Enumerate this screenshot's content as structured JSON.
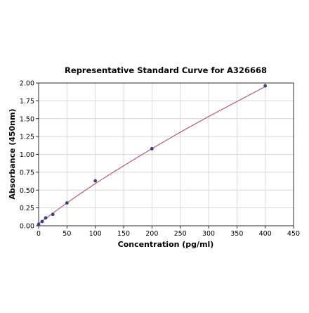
{
  "chart_data": {
    "type": "scatter",
    "title": "Representative Standard Curve for A326668",
    "xlabel": "Concentration (pg/ml)",
    "ylabel": "Absorbance (450nm)",
    "xlim": [
      0,
      450
    ],
    "ylim": [
      0,
      2.0
    ],
    "xticks": [
      0,
      50,
      100,
      150,
      200,
      250,
      300,
      350,
      400,
      450
    ],
    "yticks": [
      0.0,
      0.25,
      0.5,
      0.75,
      1.0,
      1.25,
      1.5,
      1.75,
      2.0
    ],
    "ytick_labels": [
      "0.00",
      "0.25",
      "0.50",
      "0.75",
      "1.00",
      "1.25",
      "1.50",
      "1.75",
      "2.00"
    ],
    "grid": true,
    "points": {
      "x": [
        0,
        6.25,
        12.5,
        25,
        50,
        100,
        200,
        400
      ],
      "y": [
        0.02,
        0.06,
        0.11,
        0.16,
        0.32,
        0.63,
        1.08,
        1.96
      ]
    },
    "fit_curve": {
      "x": [
        0,
        50,
        100,
        150,
        200,
        250,
        300,
        350,
        400
      ],
      "y": [
        0.03,
        0.32,
        0.59,
        0.84,
        1.08,
        1.31,
        1.53,
        1.74,
        1.95
      ]
    },
    "colors": {
      "point": "#3b3f7a",
      "fit_line": "#b0556a",
      "grid": "#cccccc",
      "axis": "#000000"
    }
  }
}
